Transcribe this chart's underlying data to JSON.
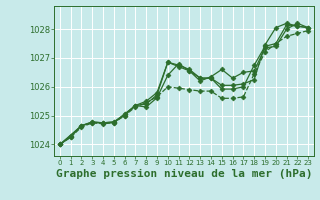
{
  "background_color": "#c8eaea",
  "grid_color": "#b0d0d0",
  "line_color": "#2d6e2d",
  "title": "Graphe pression niveau de la mer (hPa)",
  "title_fontsize": 8,
  "title_color": "#2d6e2d",
  "xlim": [
    -0.5,
    23.5
  ],
  "ylim": [
    1023.6,
    1028.8
  ],
  "yticks": [
    1024,
    1025,
    1026,
    1027,
    1028
  ],
  "xticks": [
    0,
    1,
    2,
    3,
    4,
    5,
    6,
    7,
    8,
    9,
    10,
    11,
    12,
    13,
    14,
    15,
    16,
    17,
    18,
    19,
    20,
    21,
    22,
    23
  ],
  "series": [
    {
      "x": [
        0,
        1,
        2,
        3,
        4,
        5,
        6,
        7,
        8,
        9,
        10,
        11,
        12,
        13,
        14,
        15,
        16,
        17,
        18,
        19,
        20,
        21,
        22,
        23
      ],
      "y": [
        1024.0,
        1024.3,
        1024.65,
        1024.75,
        1024.75,
        1024.75,
        1025.05,
        1025.35,
        1025.5,
        1025.8,
        1026.85,
        1026.7,
        1026.55,
        1026.3,
        1026.3,
        1026.05,
        1026.05,
        1026.1,
        1026.25,
        1027.45,
        1028.05,
        1028.2,
        1028.1,
        1028.05
      ],
      "marker": "D",
      "markersize": 2.5,
      "linewidth": 0.9,
      "linestyle": "-"
    },
    {
      "x": [
        0,
        1,
        2,
        3,
        4,
        5,
        6,
        7,
        8,
        9,
        10,
        11,
        12,
        13,
        14,
        15,
        16,
        17,
        18,
        19,
        20,
        21,
        22,
        23
      ],
      "y": [
        1024.0,
        1024.25,
        1024.6,
        1024.75,
        1024.72,
        1024.75,
        1025.0,
        1025.3,
        1025.45,
        1025.65,
        1026.0,
        1025.95,
        1025.9,
        1025.85,
        1025.85,
        1025.6,
        1025.6,
        1025.65,
        1026.45,
        1027.2,
        1027.5,
        1027.75,
        1027.85,
        1027.95
      ],
      "marker": "D",
      "markersize": 2.5,
      "linewidth": 0.9,
      "linestyle": "--"
    },
    {
      "x": [
        0,
        1,
        2,
        3,
        4,
        5,
        6,
        7,
        8,
        9,
        10,
        11,
        12,
        13,
        14,
        15,
        16,
        17,
        18,
        19,
        20,
        21,
        22,
        23
      ],
      "y": [
        1024.0,
        1024.25,
        1024.65,
        1024.78,
        1024.75,
        1024.78,
        1025.0,
        1025.35,
        1025.4,
        1025.72,
        1026.85,
        1026.75,
        1026.6,
        1026.3,
        1026.3,
        1025.92,
        1025.92,
        1026.0,
        1026.75,
        1027.4,
        1027.5,
        1028.15,
        1028.1,
        1028.05
      ],
      "marker": "D",
      "markersize": 2.5,
      "linewidth": 0.9,
      "linestyle": "-"
    },
    {
      "x": [
        0,
        2,
        3,
        4,
        5,
        6,
        7,
        8,
        9,
        10,
        11,
        12,
        13,
        14,
        15,
        16,
        17,
        18,
        19,
        20,
        21,
        22,
        23
      ],
      "y": [
        1024.0,
        1024.65,
        1024.78,
        1024.75,
        1024.78,
        1025.05,
        1025.35,
        1025.3,
        1025.62,
        1026.4,
        1026.8,
        1026.55,
        1026.2,
        1026.35,
        1026.6,
        1026.3,
        1026.5,
        1026.55,
        1027.35,
        1027.4,
        1028.0,
        1028.2,
        1028.05
      ],
      "marker": "D",
      "markersize": 2.5,
      "linewidth": 0.9,
      "linestyle": "-"
    }
  ]
}
